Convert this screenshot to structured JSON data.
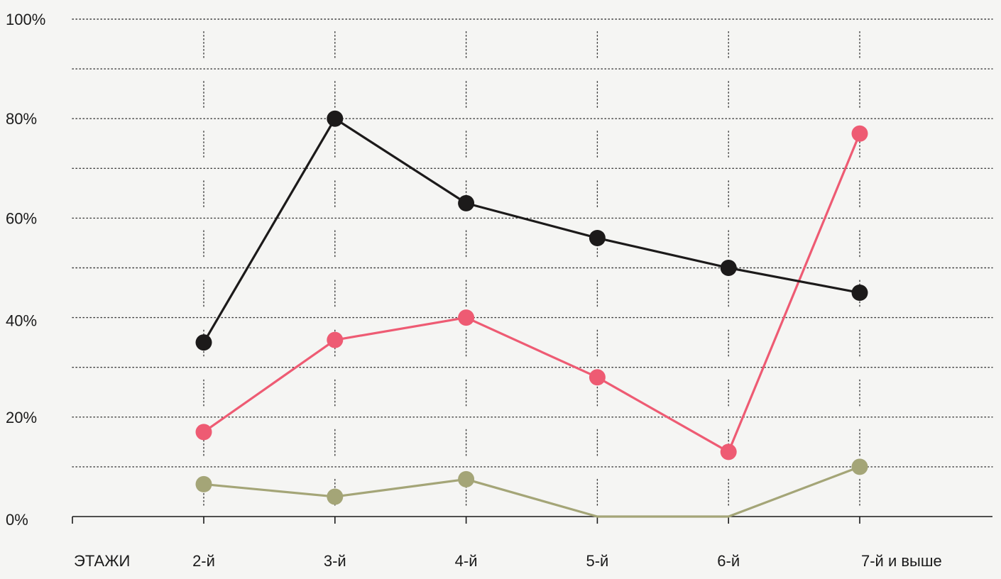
{
  "chart_data": {
    "type": "line",
    "xlabel": "ЭТАЖИ",
    "categories": [
      "2-й",
      "3-й",
      "4-й",
      "5-й",
      "6-й",
      "7-й и выше"
    ],
    "ylim": [
      0,
      100
    ],
    "yticks": [
      "0%",
      "20%",
      "40%",
      "60%",
      "80%",
      "100%"
    ],
    "ytick_values": [
      0,
      20,
      40,
      60,
      80,
      100
    ],
    "grid": true,
    "series": [
      {
        "color": "#1c1a1a",
        "values": [
          35,
          80,
          63,
          56,
          50,
          45
        ]
      },
      {
        "color": "#ee5b73",
        "values": [
          17,
          35.5,
          40,
          28,
          13,
          77
        ]
      },
      {
        "color": "#a4a577",
        "values": [
          6.5,
          4,
          7.5,
          0,
          0,
          10
        ]
      }
    ]
  }
}
